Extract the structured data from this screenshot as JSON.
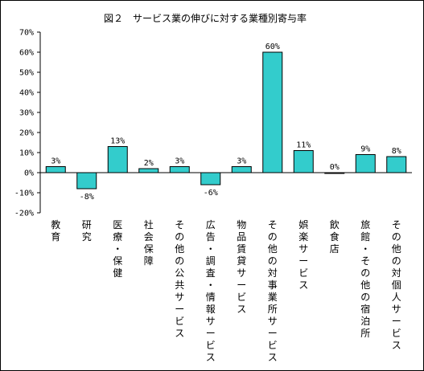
{
  "chart_data": {
    "type": "bar",
    "title": "図２　サービス業の伸びに対する業種別寄与率",
    "categories": [
      "教育",
      "研究",
      "医療・保健",
      "社会保障",
      "その他の公共サービス",
      "広告・調査・情報サービス",
      "物品賃貸サービス",
      "その他の対事業所サービス",
      "娯楽サービス",
      "飲食店",
      "旅館・その他の宿泊所",
      "その他の対個人サービス"
    ],
    "values": [
      3,
      -8,
      13,
      2,
      3,
      -6,
      3,
      60,
      11,
      0,
      9,
      8
    ],
    "data_labels": [
      "3%",
      "-8%",
      "13%",
      "2%",
      "3%",
      "-6%",
      "3%",
      "60%",
      "11%",
      "0%",
      "9%",
      "8%"
    ],
    "yticks": [
      "70%",
      "60%",
      "50%",
      "40%",
      "30%",
      "20%",
      "10%",
      "0%",
      "-10%",
      "-20%"
    ],
    "ylim": [
      -20,
      70
    ],
    "xlabel": "",
    "ylabel": "",
    "grid": false,
    "legend": "none",
    "bar_color": "#33CCCC",
    "bar_edge_color": "#000000"
  }
}
